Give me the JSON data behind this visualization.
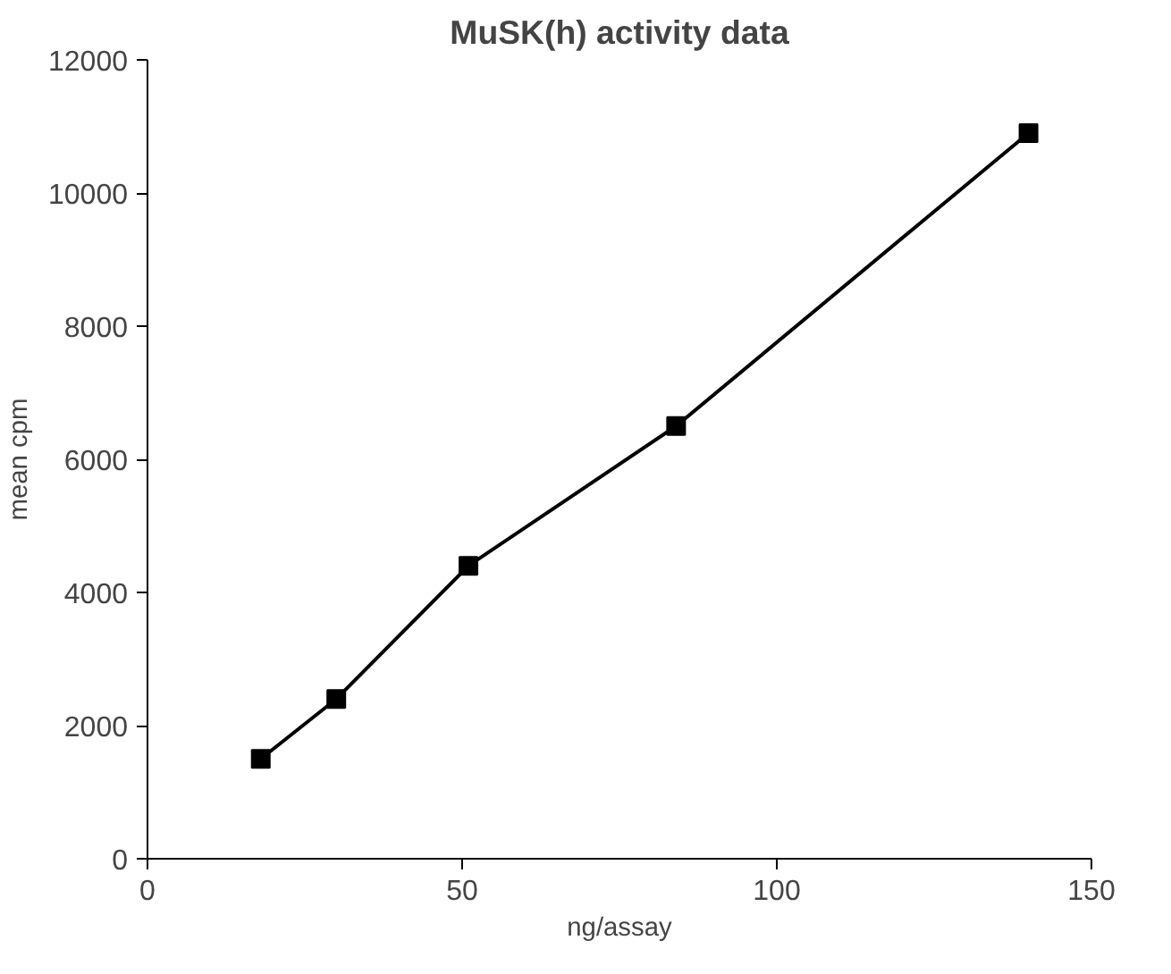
{
  "chart_data": {
    "type": "line",
    "title": "MuSK(h) activity data",
    "xlabel": "ng/assay",
    "ylabel": "mean cpm",
    "x": [
      18,
      30,
      51,
      84,
      140
    ],
    "series": [
      {
        "color": "#000000",
        "values": [
          1500,
          2400,
          4400,
          6500,
          10900
        ]
      }
    ],
    "xlim": [
      0,
      150
    ],
    "xticks": [
      0,
      50,
      100,
      150
    ],
    "ylim": [
      0,
      12000
    ],
    "yticks": [
      0,
      2000,
      4000,
      6000,
      8000,
      10000,
      12000
    ],
    "grid": false,
    "marker": "square",
    "line_style": "solid"
  }
}
